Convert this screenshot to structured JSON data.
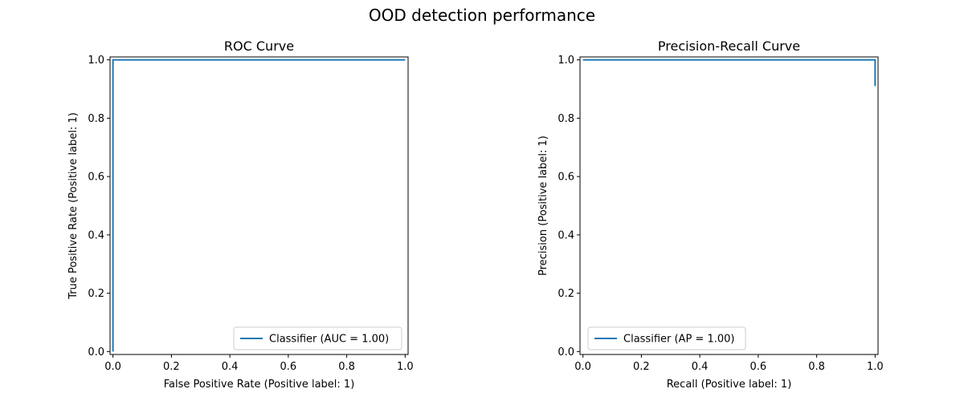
{
  "figure": {
    "suptitle": "OOD detection performance"
  },
  "chart_data": [
    {
      "type": "line",
      "title": "ROC Curve",
      "xlabel": "False Positive Rate (Positive label: 1)",
      "ylabel": "True Positive Rate (Positive label: 1)",
      "xlim": [
        0,
        1
      ],
      "ylim": [
        0,
        1
      ],
      "xticks": [
        "0.0",
        "0.2",
        "0.4",
        "0.6",
        "0.8",
        "1.0"
      ],
      "yticks": [
        "0.0",
        "0.2",
        "0.4",
        "0.6",
        "0.8",
        "1.0"
      ],
      "grid": false,
      "legend_position": "lower-right",
      "series": [
        {
          "name": "Classifier (AUC = 1.00)",
          "color": "#1f77b4",
          "x": [
            0,
            0,
            1
          ],
          "y": [
            0,
            1,
            1
          ]
        }
      ]
    },
    {
      "type": "line",
      "title": "Precision-Recall Curve",
      "xlabel": "Recall (Positive label: 1)",
      "ylabel": "Precision (Positive label: 1)",
      "xlim": [
        0,
        1
      ],
      "ylim": [
        0,
        1
      ],
      "xticks": [
        "0.0",
        "0.2",
        "0.4",
        "0.6",
        "0.8",
        "1.0"
      ],
      "yticks": [
        "0.0",
        "0.2",
        "0.4",
        "0.6",
        "0.8",
        "1.0"
      ],
      "grid": false,
      "legend_position": "lower-left",
      "series": [
        {
          "name": "Classifier (AP = 1.00)",
          "color": "#1f77b4",
          "x": [
            0,
            1,
            1
          ],
          "y": [
            1,
            1,
            0.91
          ]
        }
      ]
    }
  ]
}
